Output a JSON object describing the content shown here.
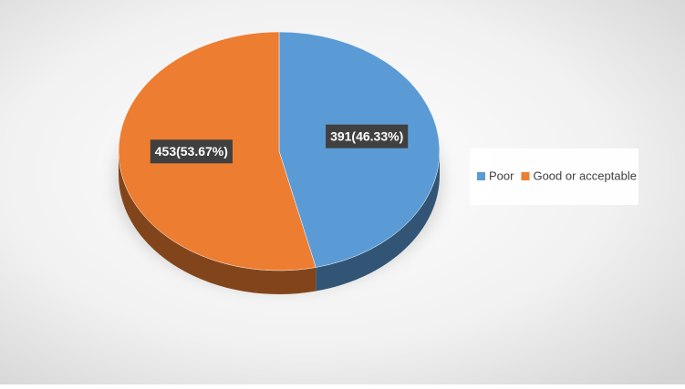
{
  "chart_data": {
    "type": "pie",
    "categories": [
      "Poor",
      "Good or acceptable"
    ],
    "series": [
      {
        "values": [
          391,
          453
        ],
        "value_labels": [
          "391(46.33%)",
          "453(53.67%)"
        ],
        "colors": [
          "#5b9bd5",
          "#ed7d31"
        ]
      }
    ],
    "legend": "right"
  }
}
